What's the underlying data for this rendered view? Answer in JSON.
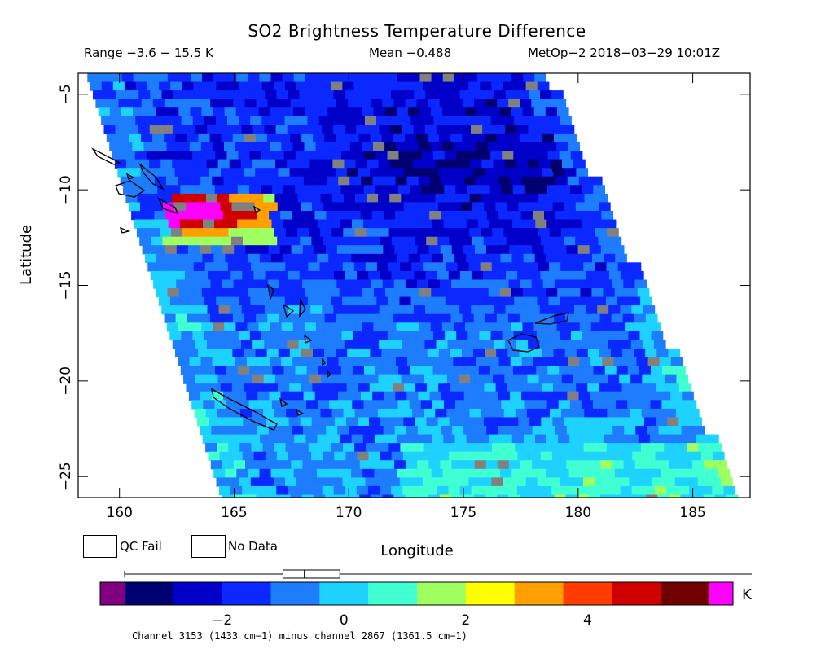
{
  "chart_data": {
    "type": "heatmap",
    "title": "SO2 Brightness Temperature Difference",
    "range_text": "Range −3.6 − 15.5 K",
    "mean_text": "Mean −0.488",
    "satellite_text": "MetOp−2 2018−03−29 10:01Z",
    "xlabel": "Longitude",
    "ylabel": "Latitude",
    "xlim": [
      158.2,
      187.5
    ],
    "ylim": [
      -26.1,
      -3.9
    ],
    "x_ticks": [
      160,
      165,
      170,
      175,
      180,
      185
    ],
    "x_tick_labels": [
      "160",
      "165",
      "170",
      "175",
      "180",
      "185"
    ],
    "y_ticks": [
      -5,
      -10,
      -15,
      -20,
      -25
    ],
    "y_tick_labels": [
      "−5",
      "−10",
      "−15",
      "−20",
      "−25"
    ],
    "swath": {
      "lon_left_top": 158.6,
      "lon_left_bottom": 164.5,
      "lon_right_top": 178.5,
      "lon_right_bottom": 186.9
    },
    "so2_plume": {
      "lon": [
        161.8,
        166.5
      ],
      "lat": [
        -10.0,
        -12.6
      ],
      "peak_value": 15.5
    },
    "background_value_range": [
      -3.0,
      1.0
    ],
    "colorbar": {
      "unit": "K",
      "min": -3.6,
      "max": 6.0,
      "tick_values": [
        -2,
        0,
        2,
        4
      ],
      "tick_labels": [
        "−2",
        "0",
        "2",
        "4"
      ],
      "colors": [
        "#000070",
        "#0000c8",
        "#0a28ff",
        "#1e7cff",
        "#1ed2ff",
        "#40ffd2",
        "#a0ff60",
        "#ffff00",
        "#ffa000",
        "#ff3c00",
        "#d00000",
        "#700000"
      ],
      "under_color": "#800080",
      "over_color": "#ff00ff",
      "boxplot_min": -3.6,
      "boxplot_q1": -1.0,
      "boxplot_median": -0.65,
      "boxplot_q3": -0.2,
      "boxplot_max": 6.0
    },
    "legend": [
      {
        "label": "QC Fail",
        "color": "#808080"
      },
      {
        "label": "No Data",
        "color": "#ffffff"
      }
    ],
    "footnote": "Channel 3153 (1433 cm−1) minus channel 2867 (1361.5 cm−1)"
  }
}
